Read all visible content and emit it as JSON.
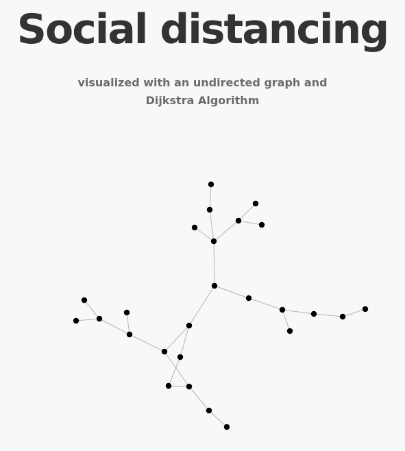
{
  "header": {
    "title": "Social distancing",
    "subtitle": "visualized with an undirected graph and Dijkstra Algorithm"
  },
  "colors": {
    "background": "#f7f8fa",
    "title": "#333333",
    "subtitle": "#6b6b6b",
    "edge": "#b4b4b4",
    "node": "#000000"
  }
}
